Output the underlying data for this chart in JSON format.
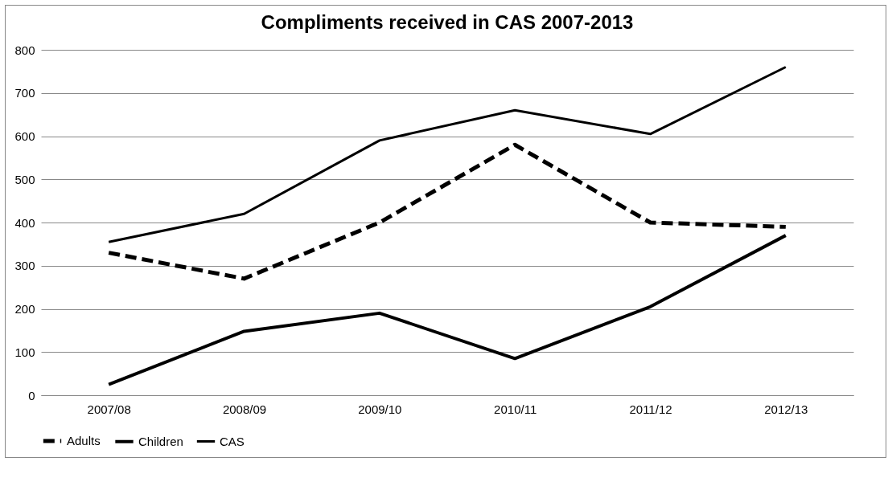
{
  "chart_data": {
    "type": "line",
    "title": "Compliments received in CAS 2007-2013",
    "categories": [
      "2007/08",
      "2008/09",
      "2009/10",
      "2010/11",
      "2011/12",
      "2012/13"
    ],
    "series": [
      {
        "name": "Adults",
        "color": "#000000",
        "line_style": "dashed",
        "values": [
          330,
          270,
          400,
          580,
          400,
          390
        ]
      },
      {
        "name": "Children",
        "color": "#000000",
        "line_style": "solid",
        "values": [
          25,
          148,
          190,
          85,
          205,
          370
        ]
      },
      {
        "name": "CAS",
        "color": "#000000",
        "line_style": "solid",
        "values": [
          355,
          420,
          590,
          660,
          605,
          760
        ]
      }
    ],
    "ylim": [
      0,
      800
    ],
    "yticks": [
      0,
      100,
      200,
      300,
      400,
      500,
      600,
      700,
      800
    ],
    "grid": "y",
    "legend": "bottom",
    "marker": "none"
  }
}
